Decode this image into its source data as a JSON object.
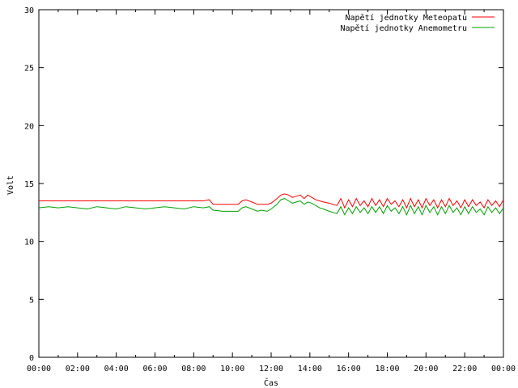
{
  "chart_data": {
    "type": "line",
    "title": "",
    "xlabel": "Čas",
    "ylabel": "Volt",
    "xlim": [
      0,
      24
    ],
    "ylim": [
      0,
      30
    ],
    "grid": false,
    "legend_position": "top-right",
    "x_tick_labels": [
      "00:00",
      "02:00",
      "04:00",
      "06:00",
      "08:00",
      "10:00",
      "12:00",
      "14:00",
      "16:00",
      "18:00",
      "20:00",
      "22:00",
      "00:00"
    ],
    "y_tick_labels": [
      "0",
      "5",
      "10",
      "15",
      "20",
      "25",
      "30"
    ],
    "x_unit": "hours",
    "series": [
      {
        "name": "Napětí jednotky Meteopatu",
        "color": "#ff0000",
        "x": [
          0,
          0.5,
          1,
          1.5,
          2,
          2.5,
          3,
          3.5,
          4,
          4.5,
          5,
          5.5,
          6,
          6.5,
          7,
          7.5,
          8,
          8.5,
          8.8,
          9.0,
          9.5,
          10,
          10.3,
          10.5,
          10.7,
          11,
          11.3,
          11.5,
          11.8,
          12,
          12.3,
          12.5,
          12.7,
          12.9,
          13.1,
          13.3,
          13.5,
          13.7,
          13.9,
          14.1,
          14.3,
          14.5,
          14.7,
          15.0,
          15.2,
          15.4,
          15.6,
          15.8,
          16.0,
          16.2,
          16.4,
          16.6,
          16.8,
          17.0,
          17.2,
          17.4,
          17.6,
          17.8,
          18.0,
          18.2,
          18.4,
          18.6,
          18.8,
          19.0,
          19.2,
          19.4,
          19.6,
          19.8,
          20.0,
          20.2,
          20.4,
          20.6,
          20.8,
          21.0,
          21.2,
          21.4,
          21.6,
          21.8,
          22.0,
          22.2,
          22.4,
          22.6,
          22.8,
          23.0,
          23.2,
          23.4,
          23.6,
          23.8,
          24.0
        ],
        "y": [
          13.5,
          13.5,
          13.5,
          13.5,
          13.5,
          13.5,
          13.5,
          13.5,
          13.5,
          13.5,
          13.5,
          13.5,
          13.5,
          13.5,
          13.5,
          13.5,
          13.5,
          13.5,
          13.6,
          13.2,
          13.2,
          13.2,
          13.2,
          13.5,
          13.6,
          13.4,
          13.2,
          13.2,
          13.2,
          13.3,
          13.7,
          14.0,
          14.1,
          14.0,
          13.8,
          13.9,
          14.0,
          13.7,
          14.0,
          13.8,
          13.6,
          13.5,
          13.4,
          13.3,
          13.2,
          13.1,
          13.7,
          12.9,
          13.6,
          13.0,
          13.7,
          13.1,
          13.5,
          13.0,
          13.7,
          13.1,
          13.6,
          13.0,
          13.7,
          13.2,
          13.5,
          13.0,
          13.6,
          12.9,
          13.7,
          13.0,
          13.6,
          12.9,
          13.7,
          13.1,
          13.6,
          12.9,
          13.6,
          13.0,
          13.7,
          13.1,
          13.5,
          12.9,
          13.6,
          13.0,
          13.6,
          13.1,
          13.4,
          12.9,
          13.6,
          13.1,
          13.5,
          13.0,
          13.6
        ]
      },
      {
        "name": "Napětí jednotky Anemometru",
        "color": "#00a000",
        "x": [
          0,
          0.5,
          1,
          1.5,
          2,
          2.5,
          3,
          3.5,
          4,
          4.5,
          5,
          5.5,
          6,
          6.5,
          7,
          7.5,
          8,
          8.5,
          8.8,
          9.0,
          9.5,
          10,
          10.3,
          10.5,
          10.7,
          11,
          11.3,
          11.5,
          11.8,
          12,
          12.3,
          12.5,
          12.7,
          12.9,
          13.1,
          13.3,
          13.5,
          13.7,
          13.9,
          14.1,
          14.3,
          14.5,
          14.7,
          15.0,
          15.2,
          15.4,
          15.6,
          15.8,
          16.0,
          16.2,
          16.4,
          16.6,
          16.8,
          17.0,
          17.2,
          17.4,
          17.6,
          17.8,
          18.0,
          18.2,
          18.4,
          18.6,
          18.8,
          19.0,
          19.2,
          19.4,
          19.6,
          19.8,
          20.0,
          20.2,
          20.4,
          20.6,
          20.8,
          21.0,
          21.2,
          21.4,
          21.6,
          21.8,
          22.0,
          22.2,
          22.4,
          22.6,
          22.8,
          23.0,
          23.2,
          23.4,
          23.6,
          23.8,
          24.0
        ],
        "y": [
          12.9,
          13.0,
          12.9,
          13.0,
          12.9,
          12.8,
          13.0,
          12.9,
          12.8,
          13.0,
          12.9,
          12.8,
          12.9,
          13.0,
          12.9,
          12.8,
          13.0,
          12.9,
          13.0,
          12.7,
          12.6,
          12.6,
          12.6,
          12.9,
          13.0,
          12.8,
          12.6,
          12.7,
          12.6,
          12.8,
          13.2,
          13.6,
          13.7,
          13.5,
          13.3,
          13.4,
          13.5,
          13.2,
          13.4,
          13.3,
          13.1,
          12.9,
          12.8,
          12.6,
          12.5,
          12.4,
          13.0,
          12.3,
          12.9,
          12.4,
          13.0,
          12.5,
          12.9,
          12.4,
          13.0,
          12.5,
          13.0,
          12.4,
          13.1,
          12.6,
          12.9,
          12.4,
          13.0,
          12.3,
          13.1,
          12.4,
          13.0,
          12.3,
          13.1,
          12.5,
          13.0,
          12.3,
          13.0,
          12.4,
          13.1,
          12.5,
          12.9,
          12.3,
          13.0,
          12.4,
          13.0,
          12.5,
          12.8,
          12.3,
          13.0,
          12.5,
          12.9,
          12.4,
          12.9
        ]
      }
    ]
  }
}
